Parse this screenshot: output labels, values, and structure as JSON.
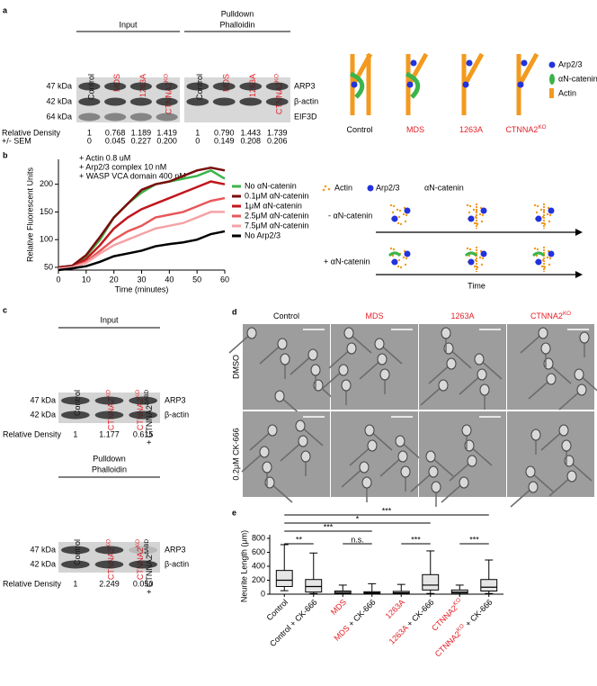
{
  "panel_a": {
    "letter": "a",
    "groups": [
      {
        "title": [
          "Input"
        ],
        "lanes": [
          [
            [
              {
                "text": "Control"
              }
            ]
          ],
          [
            [
              {
                "text": "MDS",
                "color": "#e31e24"
              }
            ]
          ],
          [
            [
              {
                "text": "1263A",
                "color": "#e31e24"
              }
            ]
          ],
          [
            [
              {
                "text": "CTNNA2",
                "color": "#e31e24"
              },
              {
                "text": "KO",
                "sup": true,
                "color": "#e31e24"
              }
            ]
          ]
        ],
        "density": [
          "1",
          "0.768",
          "1.189",
          "1.419"
        ],
        "sem": [
          "0",
          "0.045",
          "0.227",
          "0.200"
        ]
      },
      {
        "title": [
          "Pulldown",
          "Phalloidin"
        ],
        "lanes": [
          [
            [
              {
                "text": "Control"
              }
            ]
          ],
          [
            [
              {
                "text": "MDS",
                "color": "#e31e24"
              }
            ]
          ],
          [
            [
              {
                "text": "1263A",
                "color": "#e31e24"
              }
            ]
          ],
          [
            [
              {
                "text": "CTNNA2",
                "color": "#e31e24"
              },
              {
                "text": "KO",
                "sup": true,
                "color": "#e31e24"
              }
            ]
          ]
        ],
        "density": [
          "1",
          "0.790",
          "1.443",
          "1.739"
        ],
        "sem": [
          "0",
          "0.149",
          "0.208",
          "0.206"
        ]
      }
    ],
    "sizes": [
      "47 kDa",
      "42 kDa",
      "64 kDa"
    ],
    "proteins": [
      "ARP3",
      "β-actin",
      "EIF3D"
    ],
    "row_labels": [
      "Relative Density",
      "+/- SEM"
    ],
    "diagram": {
      "labels": [
        [
          {
            "text": "Control"
          }
        ],
        [
          {
            "text": "MDS",
            "color": "#e31e24"
          }
        ],
        [
          {
            "text": "1263A",
            "color": "#e31e24"
          }
        ],
        [
          {
            "text": "CTNNA2",
            "color": "#e31e24"
          },
          {
            "text": "KO",
            "sup": true,
            "color": "#e31e24"
          }
        ]
      ],
      "legend": [
        "Arp2/3",
        "αN-catenin",
        "Actin"
      ]
    }
  },
  "panel_b_diagram": {
    "legend": [
      "Actin",
      "Arp2/3",
      "αN-catenin"
    ],
    "rows": [
      "- αN-catenin",
      "+ αN-catenin"
    ],
    "axis": "Time"
  },
  "panel_c": {
    "letter": "c",
    "blots": [
      {
        "title": [
          "Input"
        ],
        "lanes": [
          [
            [
              {
                "text": "Control"
              }
            ]
          ],
          [
            [
              {
                "text": "CTNNA2",
                "color": "#e31e24"
              },
              {
                "text": "KO",
                "sup": true,
                "color": "#e31e24"
              }
            ]
          ],
          [
            [
              {
                "text": "CTNNA2",
                "color": "#e31e24"
              },
              {
                "text": "KO",
                "sup": true,
                "color": "#e31e24"
              }
            ],
            [
              {
                "text": "+ CTNNA2"
              },
              {
                "text": "ΔABD",
                "sup": true
              }
            ]
          ]
        ],
        "sizes": [
          "47 kDa",
          "42 kDa"
        ],
        "proteins": [
          "ARP3",
          "β-actin"
        ],
        "row_label": "Relative Density",
        "density": [
          "1",
          "1.177",
          "0.615"
        ]
      },
      {
        "title": [
          "Pulldown",
          "Phalloidin"
        ],
        "lanes": [
          [
            [
              {
                "text": "Control"
              }
            ]
          ],
          [
            [
              {
                "text": "CTNNA2",
                "color": "#e31e24"
              },
              {
                "text": "KO",
                "sup": true,
                "color": "#e31e24"
              }
            ]
          ],
          [
            [
              {
                "text": "CTNNA2",
                "color": "#e31e24"
              },
              {
                "text": "KO",
                "sup": true,
                "color": "#e31e24"
              }
            ],
            [
              {
                "text": "+ CTNNA2"
              },
              {
                "text": "ΔABD",
                "sup": true
              }
            ]
          ]
        ],
        "sizes": [
          "47 kDa",
          "42 kDa"
        ],
        "proteins": [
          "ARP3",
          "β-actin"
        ],
        "row_label": "Relative Density",
        "density": [
          "1",
          "2.249",
          "0.050"
        ]
      }
    ]
  },
  "panel_d": {
    "letter": "d",
    "columns": [
      [
        {
          "text": "Control"
        }
      ],
      [
        {
          "text": "MDS",
          "color": "#e31e24"
        }
      ],
      [
        {
          "text": "1263A",
          "color": "#e31e24"
        }
      ],
      [
        {
          "text": "CTNNA2",
          "color": "#e31e24"
        },
        {
          "text": "KO",
          "sup": true,
          "color": "#e31e24"
        }
      ]
    ],
    "rows": [
      "DMSO",
      "0.2μM CK-666"
    ]
  },
  "chart_data": [
    {
      "type": "line",
      "letter": "b",
      "annotations": [
        "+ Actin 0.8 uM",
        "+ Arp2/3 complex 10 nM",
        "+ WASP VCA domain 400 nM"
      ],
      "xlabel": "Time (minutes)",
      "ylabel": "Relative Fluorescent Units",
      "x": [
        0,
        5,
        10,
        15,
        20,
        25,
        30,
        35,
        40,
        45,
        50,
        55,
        60
      ],
      "xlim": [
        0,
        60
      ],
      "ylim": [
        45,
        245
      ],
      "xticks": [
        0,
        10,
        20,
        30,
        40,
        50,
        60
      ],
      "yticks": [
        50,
        100,
        150,
        200
      ],
      "legend": "right",
      "series": [
        {
          "name": "No αN-catenin",
          "color": "#3cb44b",
          "values": [
            50,
            52,
            70,
            100,
            140,
            165,
            185,
            200,
            205,
            210,
            215,
            225,
            210
          ]
        },
        {
          "name": "0.1μM αN-catenin",
          "color": "#7a0c0c",
          "values": [
            50,
            53,
            72,
            105,
            140,
            165,
            190,
            200,
            205,
            215,
            225,
            230,
            225
          ]
        },
        {
          "name": "1μM αN-catenin",
          "color": "#c0161b",
          "values": [
            48,
            50,
            65,
            90,
            120,
            140,
            155,
            165,
            175,
            185,
            195,
            205,
            200
          ]
        },
        {
          "name": "2.5μM αN-catenin",
          "color": "#e8575a",
          "values": [
            48,
            50,
            60,
            80,
            100,
            115,
            125,
            140,
            145,
            150,
            160,
            170,
            175
          ]
        },
        {
          "name": "7.5μM αN-catenin",
          "color": "#f4a3a5",
          "values": [
            47,
            50,
            58,
            75,
            90,
            100,
            110,
            120,
            125,
            130,
            140,
            150,
            150
          ]
        },
        {
          "name": "No Arp2/3",
          "color": "#000000",
          "values": [
            45,
            48,
            52,
            60,
            70,
            75,
            80,
            88,
            92,
            95,
            100,
            110,
            115
          ]
        }
      ]
    },
    {
      "type": "box",
      "letter": "e",
      "ylabel": "Neurite Length (μm)",
      "categories": [
        [
          {
            "text": "Control"
          }
        ],
        [
          {
            "text": "Control + CK-666"
          }
        ],
        [
          {
            "text": "MDS",
            "color": "#e31e24"
          }
        ],
        [
          {
            "text": "MDS",
            "color": "#e31e24"
          },
          {
            "text": " + CK-666"
          }
        ],
        [
          {
            "text": "1263A",
            "color": "#e31e24"
          }
        ],
        [
          {
            "text": "1263A",
            "color": "#e31e24"
          },
          {
            "text": " + CK-666"
          }
        ],
        [
          {
            "text": "CTNNA2",
            "color": "#e31e24"
          },
          {
            "text": "KO",
            "sup": true,
            "color": "#e31e24"
          }
        ],
        [
          {
            "text": "CTNNA2",
            "color": "#e31e24"
          },
          {
            "text": "KO",
            "sup": true,
            "color": "#e31e24"
          },
          {
            "text": " + CK-666"
          }
        ]
      ],
      "boxes": [
        {
          "min": 50,
          "q1": 110,
          "median": 200,
          "q3": 340,
          "max": 710
        },
        {
          "min": 10,
          "q1": 30,
          "median": 110,
          "q3": 210,
          "max": 590
        },
        {
          "min": 0,
          "q1": 10,
          "median": 25,
          "q3": 45,
          "max": 130
        },
        {
          "min": 0,
          "q1": 10,
          "median": 20,
          "q3": 35,
          "max": 150
        },
        {
          "min": 0,
          "q1": 10,
          "median": 20,
          "q3": 40,
          "max": 140
        },
        {
          "min": 10,
          "q1": 60,
          "median": 130,
          "q3": 280,
          "max": 620
        },
        {
          "min": 0,
          "q1": 15,
          "median": 30,
          "q3": 60,
          "max": 130
        },
        {
          "min": 10,
          "q1": 45,
          "median": 100,
          "q3": 210,
          "max": 490
        }
      ],
      "color": "#e6e6e6",
      "ylim": [
        0,
        800
      ],
      "yticks": [
        0,
        200,
        400,
        600,
        800
      ],
      "significance": [
        {
          "from": 0,
          "to": 7,
          "label": "***"
        },
        {
          "from": 0,
          "to": 5,
          "label": "*"
        },
        {
          "from": 0,
          "to": 3,
          "label": "***"
        },
        {
          "from": 0,
          "to": 1,
          "label": "**"
        },
        {
          "from": 2,
          "to": 3,
          "label": "n.s."
        },
        {
          "from": 4,
          "to": 5,
          "label": "***"
        },
        {
          "from": 6,
          "to": 7,
          "label": "***"
        }
      ]
    }
  ]
}
